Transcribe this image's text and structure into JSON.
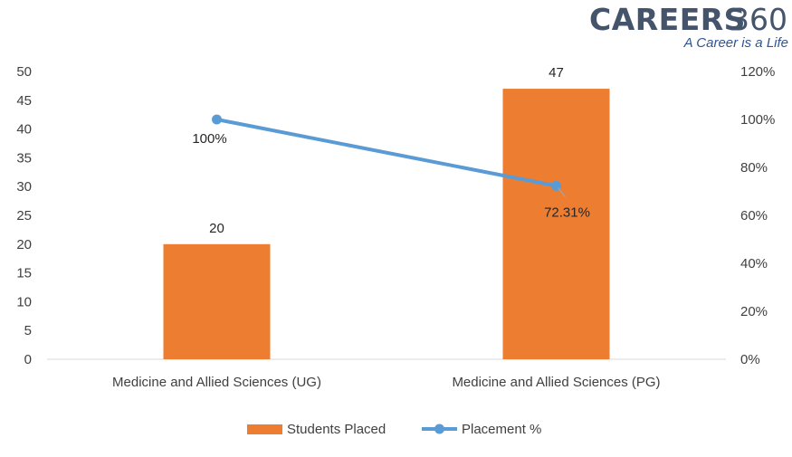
{
  "logo": {
    "brand": "CAREERS",
    "number": "360",
    "tagline": "A Career is a Life"
  },
  "chart_data": {
    "type": "bar",
    "categories": [
      "Medicine and Allied Sciences (UG)",
      "Medicine and Allied Sciences (PG)"
    ],
    "series": [
      {
        "name": "Students Placed",
        "chart_type": "bar",
        "axis": "left",
        "color": "#ED7D31",
        "values": [
          20,
          47
        ],
        "data_labels": [
          "20",
          "47"
        ]
      },
      {
        "name": "Placement %",
        "chart_type": "line",
        "axis": "right",
        "color": "#5B9BD5",
        "values": [
          100,
          72.31
        ],
        "data_labels": [
          "100%",
          "72.31%"
        ]
      }
    ],
    "y_left": {
      "min": 0,
      "max": 50,
      "step": 5,
      "ticks": [
        "0",
        "5",
        "10",
        "15",
        "20",
        "25",
        "30",
        "35",
        "40",
        "45",
        "50"
      ]
    },
    "y_right": {
      "min": 0,
      "max": 120,
      "step": 20,
      "ticks": [
        "0%",
        "20%",
        "40%",
        "60%",
        "80%",
        "100%",
        "120%"
      ]
    },
    "grid": false,
    "legend_position": "bottom"
  }
}
